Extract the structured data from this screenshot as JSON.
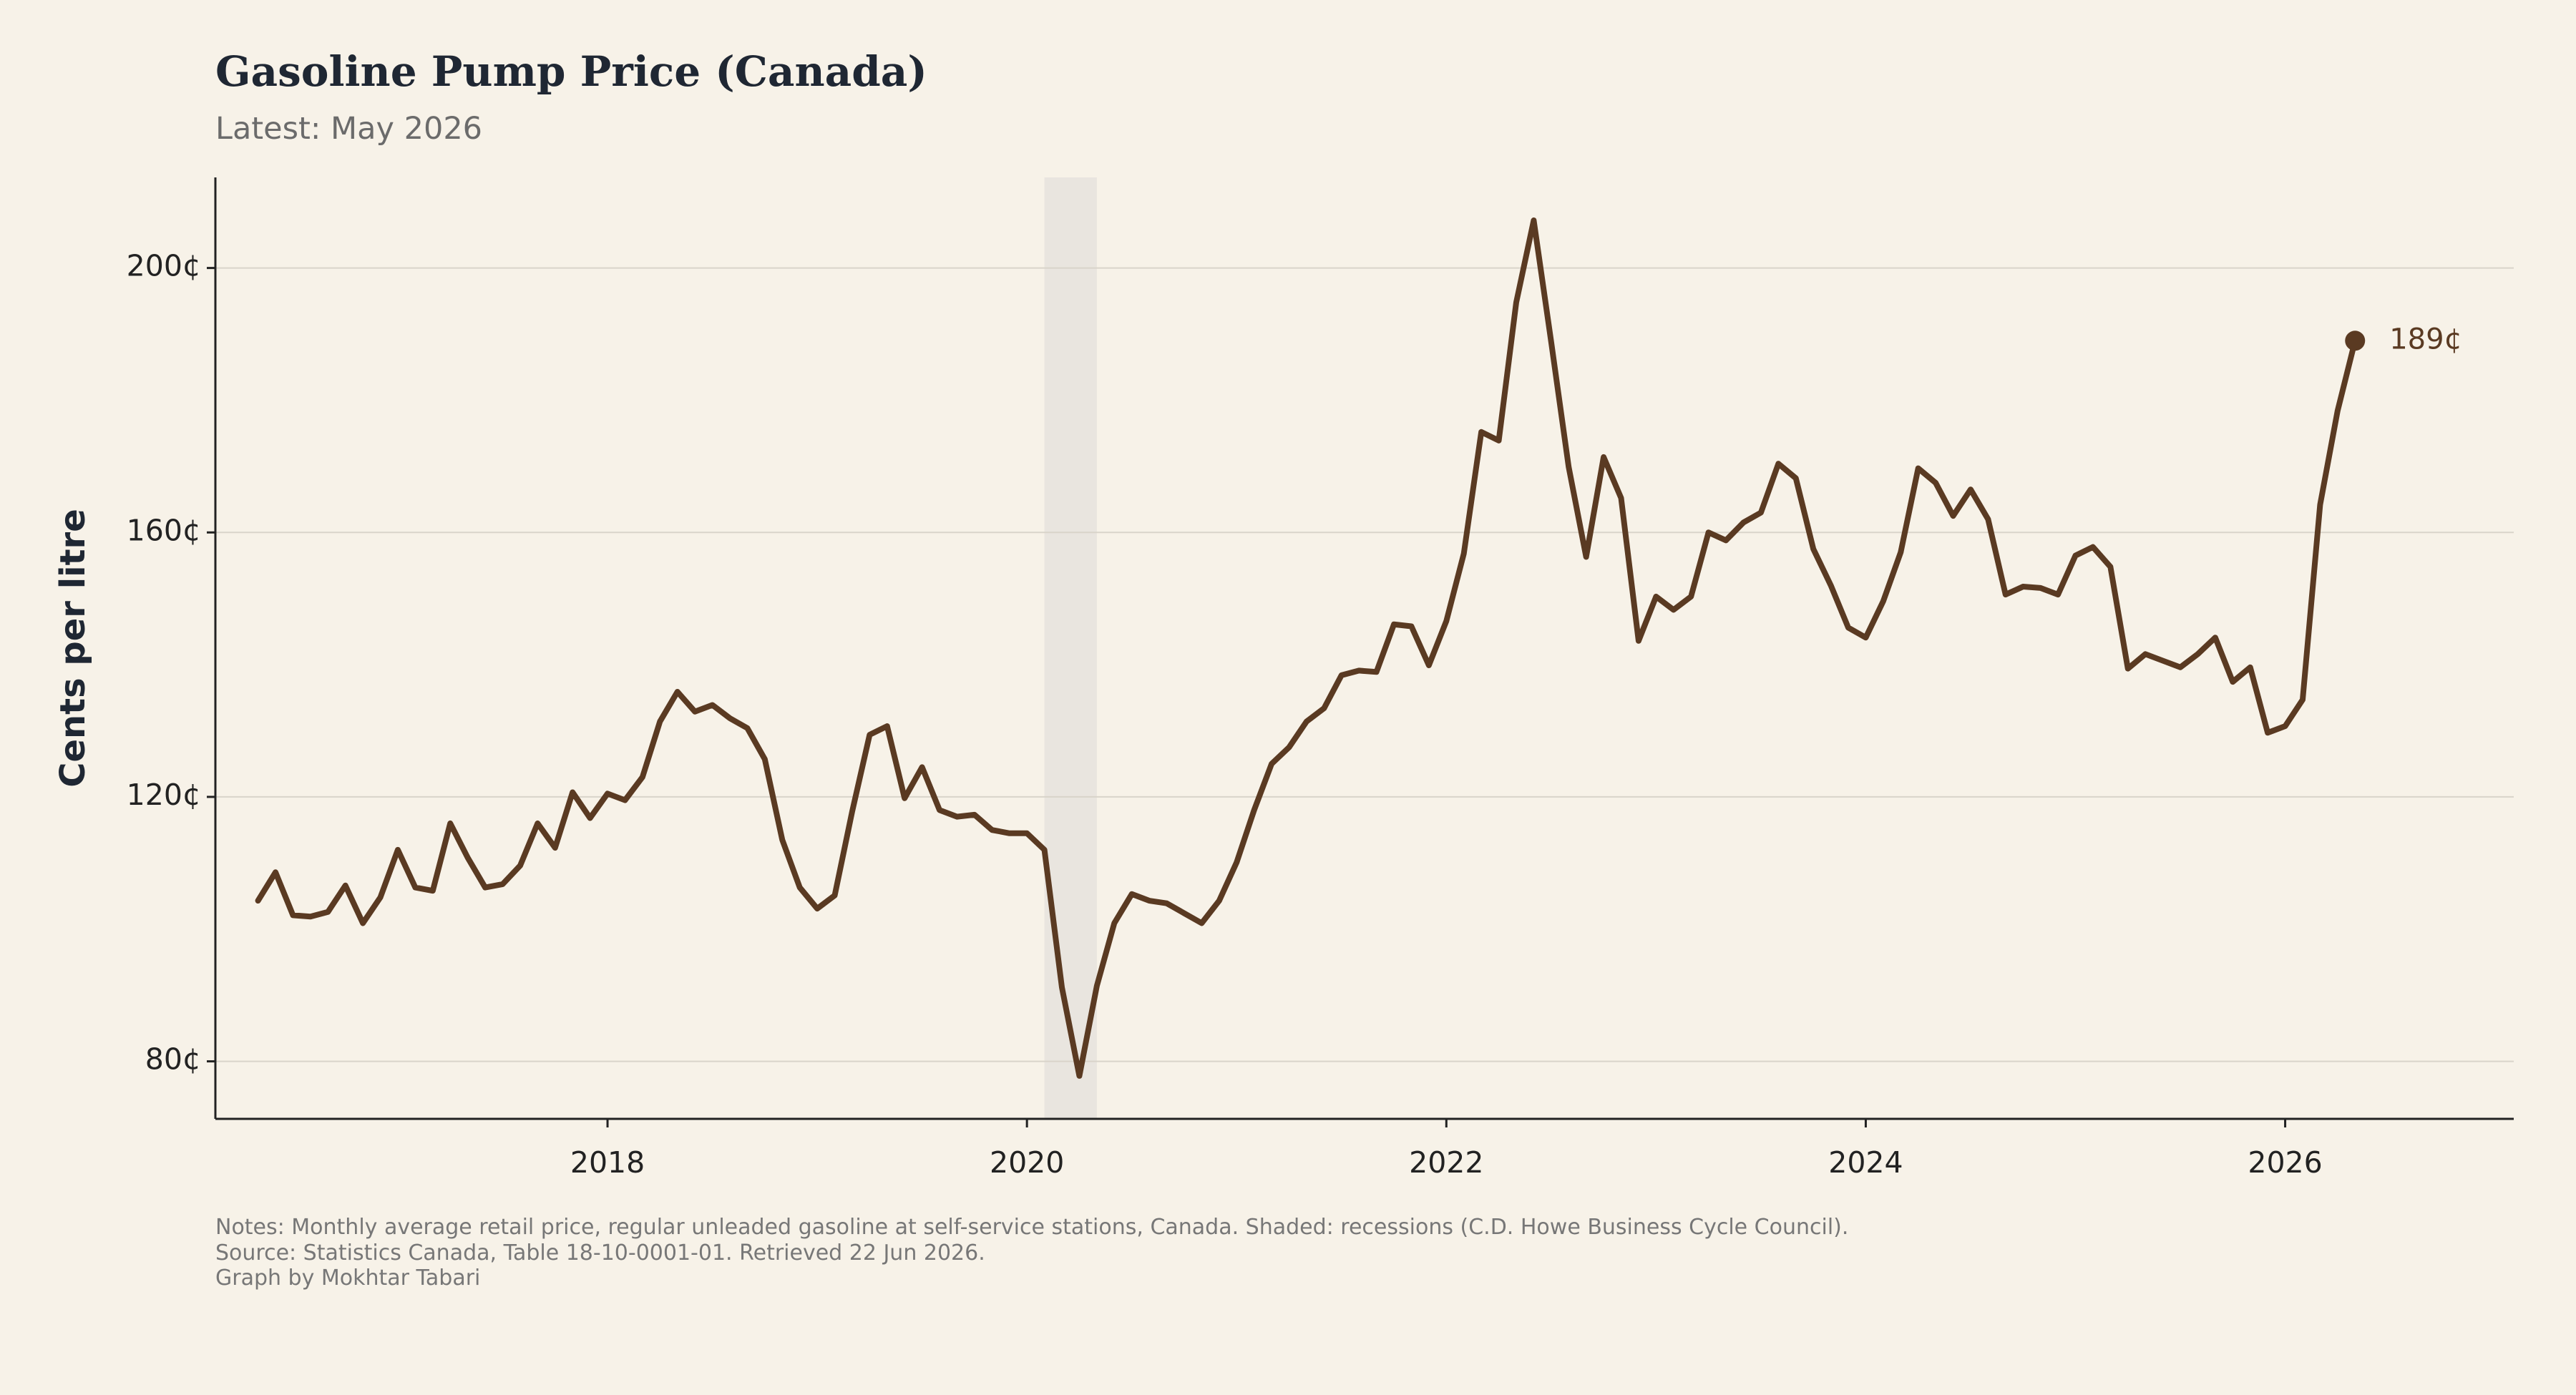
{
  "chart_data": {
    "type": "line",
    "title": "Gasoline Pump Price (Canada)",
    "subtitle": "Latest: May 2026",
    "y_label": "Cents per litre",
    "notes": [
      "Notes: Monthly average retail price, regular unleaded gasoline at self-service stations, Canada. Shaded: recessions (C.D. Howe Business Cycle Council).",
      "Source: Statistics Canada, Table 18-10-0001-01. Retrieved 22 Jun 2026.",
      "Graph by Mokhtar Tabari"
    ],
    "x": [
      "2016-05",
      "2016-06",
      "2016-07",
      "2016-08",
      "2016-09",
      "2016-10",
      "2016-11",
      "2016-12",
      "2017-01",
      "2017-02",
      "2017-03",
      "2017-04",
      "2017-05",
      "2017-06",
      "2017-07",
      "2017-08",
      "2017-09",
      "2017-10",
      "2017-11",
      "2017-12",
      "2018-01",
      "2018-02",
      "2018-03",
      "2018-04",
      "2018-05",
      "2018-06",
      "2018-07",
      "2018-08",
      "2018-09",
      "2018-10",
      "2018-11",
      "2018-12",
      "2019-01",
      "2019-02",
      "2019-03",
      "2019-04",
      "2019-05",
      "2019-06",
      "2019-07",
      "2019-08",
      "2019-09",
      "2019-10",
      "2019-11",
      "2019-12",
      "2020-01",
      "2020-02",
      "2020-03",
      "2020-04",
      "2020-05",
      "2020-06",
      "2020-07",
      "2020-08",
      "2020-09",
      "2020-10",
      "2020-11",
      "2020-12",
      "2021-01",
      "2021-02",
      "2021-03",
      "2021-04",
      "2021-05",
      "2021-06",
      "2021-07",
      "2021-08",
      "2021-09",
      "2021-10",
      "2021-11",
      "2021-12",
      "2022-01",
      "2022-02",
      "2022-03",
      "2022-04",
      "2022-05",
      "2022-06",
      "2022-07",
      "2022-08",
      "2022-09",
      "2022-10",
      "2022-11",
      "2022-12",
      "2023-01",
      "2023-02",
      "2023-03",
      "2023-04",
      "2023-05",
      "2023-06",
      "2023-07",
      "2023-08",
      "2023-09",
      "2023-10",
      "2023-11",
      "2023-12",
      "2024-01",
      "2024-02",
      "2024-03",
      "2024-04",
      "2024-05",
      "2024-06",
      "2024-07",
      "2024-08",
      "2024-09",
      "2024-10",
      "2024-11",
      "2024-12",
      "2025-01",
      "2025-02",
      "2025-03",
      "2025-04",
      "2025-05",
      "2025-06",
      "2025-07",
      "2025-08",
      "2025-09",
      "2025-10",
      "2025-11",
      "2025-12",
      "2026-01",
      "2026-02",
      "2026-03",
      "2026-04",
      "2026-05"
    ],
    "series": [
      {
        "color": "#5a3a22",
        "values": [
          104.3,
          108.6,
          102.1,
          101.9,
          102.6,
          106.6,
          100.9,
          104.8,
          112.0,
          106.3,
          105.8,
          116.0,
          110.8,
          106.3,
          106.8,
          109.6,
          116.0,
          112.3,
          120.7,
          116.8,
          120.5,
          119.5,
          123.0,
          131.4,
          135.9,
          132.9,
          133.9,
          131.9,
          130.4,
          125.7,
          113.5,
          106.3,
          103.1,
          105.1,
          117.8,
          129.4,
          130.7,
          119.8,
          124.5,
          118.0,
          117.0,
          117.3,
          115.0,
          114.5,
          114.5,
          112.0,
          91.2,
          77.8,
          91.4,
          100.9,
          105.3,
          104.3,
          103.9,
          102.4,
          100.9,
          104.3,
          110.1,
          118.0,
          125.0,
          127.5,
          131.4,
          133.4,
          138.4,
          139.1,
          138.9,
          146.1,
          145.8,
          139.9,
          146.6,
          156.8,
          175.2,
          173.9,
          194.8,
          207.2,
          188.8,
          169.9,
          156.3,
          171.4,
          165.2,
          143.6,
          150.3,
          148.3,
          150.3,
          160.0,
          158.8,
          161.5,
          163.0,
          170.4,
          168.2,
          157.5,
          152.0,
          145.6,
          144.1,
          149.6,
          157.0,
          169.7,
          167.5,
          162.5,
          166.5,
          162.0,
          150.6,
          151.8,
          151.6,
          150.6,
          156.5,
          157.8,
          154.8,
          139.4,
          141.6,
          140.6,
          139.6,
          141.6,
          144.1,
          137.4,
          139.6,
          129.7,
          130.7,
          134.7,
          164.2,
          178.4,
          189
        ],
        "value_labels": [
          null,
          null,
          null,
          null,
          null,
          null,
          null,
          null,
          null,
          null,
          null,
          null,
          null,
          null,
          null,
          null,
          null,
          null,
          null,
          null,
          null,
          null,
          null,
          null,
          null,
          null,
          null,
          null,
          null,
          null,
          null,
          null,
          null,
          null,
          null,
          null,
          null,
          null,
          null,
          null,
          null,
          null,
          null,
          null,
          null,
          null,
          null,
          null,
          null,
          null,
          null,
          null,
          null,
          null,
          null,
          null,
          null,
          null,
          null,
          null,
          null,
          null,
          null,
          null,
          null,
          null,
          null,
          null,
          null,
          null,
          null,
          null,
          null,
          null,
          null,
          null,
          null,
          null,
          null,
          null,
          null,
          null,
          null,
          null,
          null,
          null,
          null,
          null,
          null,
          null,
          null,
          null,
          null,
          null,
          null,
          null,
          null,
          null,
          null,
          null,
          null,
          null,
          null,
          null,
          null,
          null,
          null,
          null,
          null,
          null,
          null,
          null,
          null,
          null,
          null,
          null,
          null,
          null,
          null,
          null,
          "189¢"
        ]
      }
    ],
    "recessions": [
      {
        "start": "2020-02",
        "end": "2020-05",
        "color": "#e9e5df"
      }
    ],
    "xlim": [
      2016.13,
      2027.09
    ],
    "xticks": [
      2018,
      2020,
      2022,
      2024,
      2026
    ],
    "ylim": [
      71.3,
      213.7
    ],
    "yticks": [
      {
        "value": 80,
        "label": "80¢"
      },
      {
        "value": 120,
        "label": "120¢"
      },
      {
        "value": 160,
        "label": "160¢"
      },
      {
        "value": 200,
        "label": "200¢"
      }
    ],
    "grid": true
  }
}
